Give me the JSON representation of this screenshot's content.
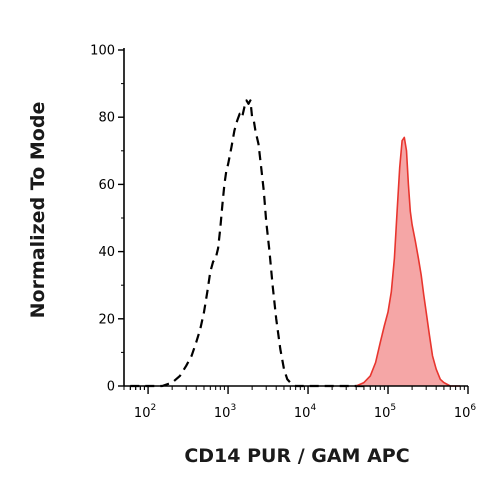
{
  "chart_data": {
    "type": "area",
    "xlabel": "CD14 PUR / GAM APC",
    "ylabel": "Normalized To Mode",
    "x_scale": "log",
    "xlim": [
      50,
      1000000
    ],
    "ylim": [
      0,
      100
    ],
    "x_ticks": [
      {
        "value": 100,
        "base": "10",
        "exp": "2"
      },
      {
        "value": 1000,
        "base": "10",
        "exp": "3"
      },
      {
        "value": 10000,
        "base": "10",
        "exp": "4"
      },
      {
        "value": 100000,
        "base": "10",
        "exp": "5"
      },
      {
        "value": 1000000,
        "base": "10",
        "exp": "6"
      }
    ],
    "y_ticks": [
      "0",
      "20",
      "40",
      "60",
      "80",
      "100"
    ],
    "grid": false,
    "series": [
      {
        "style": "dashed",
        "color": "#000000",
        "fill": "none",
        "x": [
          60,
          150,
          200,
          250,
          300,
          350,
          400,
          450,
          500,
          550,
          600,
          650,
          700,
          750,
          800,
          850,
          900,
          950,
          1000,
          1100,
          1200,
          1300,
          1400,
          1500,
          1600,
          1700,
          1800,
          1900,
          2000,
          2100,
          2200,
          2400,
          2600,
          2800,
          3000,
          3300,
          3600,
          4000,
          4500,
          5000,
          5500,
          6000,
          7000,
          8000,
          10000,
          30000,
          60000
        ],
        "y": [
          0,
          0,
          1,
          3,
          6,
          9,
          13,
          17,
          22,
          28,
          34,
          37,
          38,
          41,
          47,
          54,
          60,
          64,
          66,
          71,
          76,
          79,
          81,
          80,
          83,
          85,
          84,
          85,
          80,
          79,
          76,
          72,
          65,
          58,
          49,
          40,
          30,
          20,
          11,
          5,
          2,
          1,
          0,
          0,
          0,
          0,
          0
        ]
      },
      {
        "style": "solid",
        "color": "#e8352e",
        "fill": "#f5a6a6",
        "x": [
          40000,
          50000,
          60000,
          70000,
          80000,
          90000,
          100000,
          110000,
          120000,
          130000,
          140000,
          150000,
          160000,
          170000,
          180000,
          190000,
          200000,
          220000,
          240000,
          260000,
          280000,
          300000,
          330000,
          360000,
          400000,
          450000,
          500000,
          600000,
          800000
        ],
        "y": [
          0,
          1,
          3,
          7,
          13,
          18,
          22,
          28,
          38,
          52,
          65,
          73,
          74,
          70,
          60,
          52,
          48,
          43,
          38,
          33,
          27,
          22,
          15,
          9,
          5,
          2,
          1,
          0,
          0
        ]
      }
    ]
  }
}
